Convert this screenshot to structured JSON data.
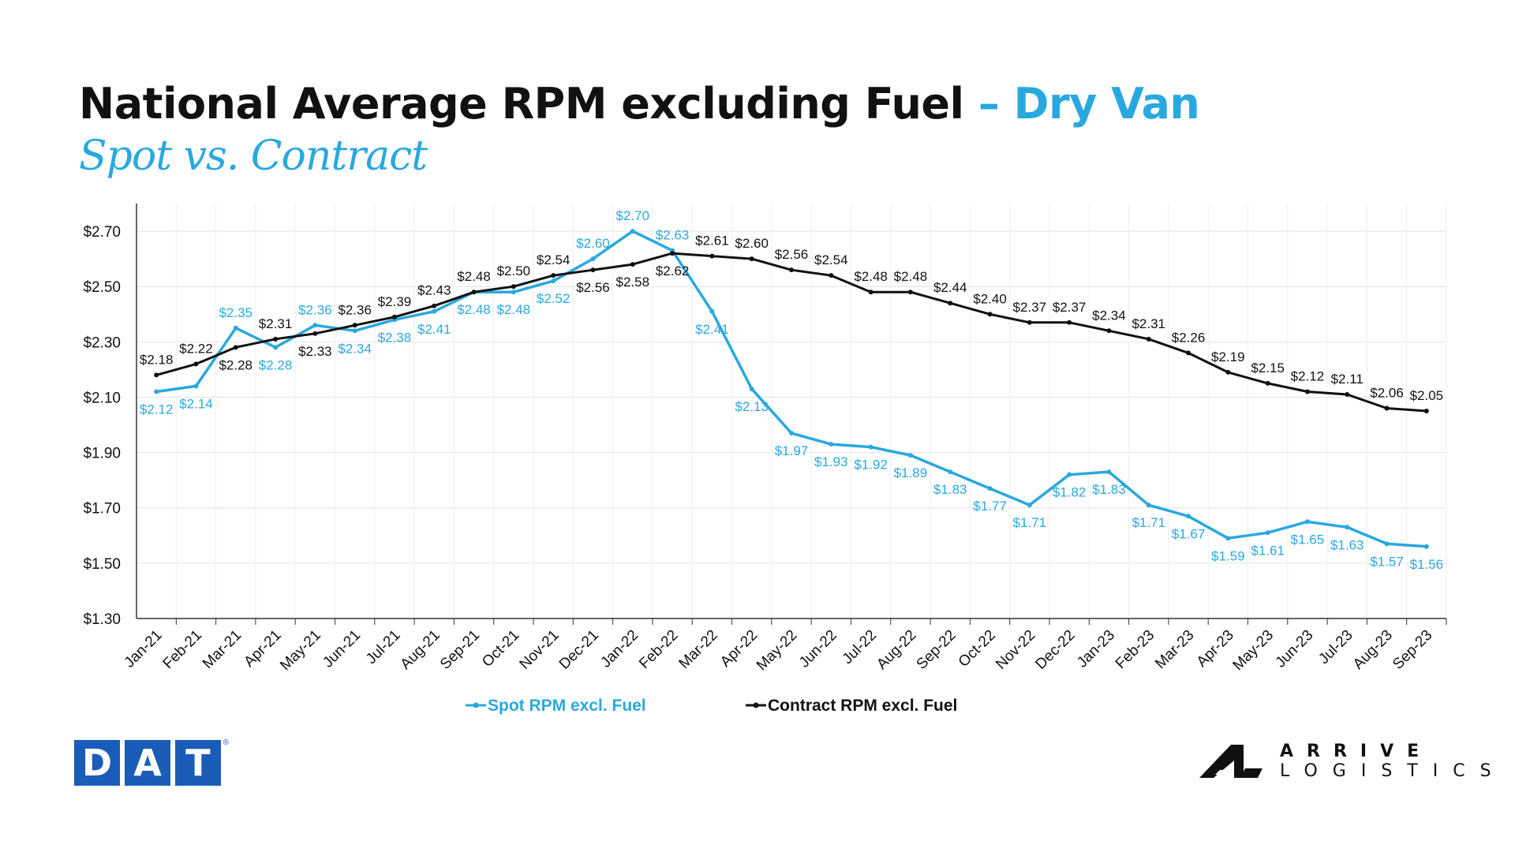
{
  "header": {
    "title_main": "National Average RPM excluding Fuel",
    "title_accent": "– Dry Van",
    "subtitle": "Spot vs. Contract"
  },
  "logos": {
    "dat_letters": [
      "D",
      "A",
      "T"
    ],
    "dat_mark": "®",
    "arrive_word1": "ARRIVE",
    "arrive_word2": "LOGISTICS"
  },
  "colors": {
    "spot": "#29a8e0",
    "contract": "#111111",
    "dat_blue": "#1a5db8"
  },
  "chart_data": {
    "type": "line",
    "title": "National Average RPM excluding Fuel – Dry Van",
    "subtitle": "Spot vs. Contract",
    "xlabel": "",
    "ylabel": "",
    "ylim": [
      1.3,
      2.8
    ],
    "yticks": [
      "$1.30",
      "$1.50",
      "$1.70",
      "$1.90",
      "$2.10",
      "$2.30",
      "$2.50",
      "$2.70"
    ],
    "ytick_values": [
      1.3,
      1.5,
      1.7,
      1.9,
      2.1,
      2.3,
      2.5,
      2.7
    ],
    "grid": true,
    "legend": "bottom-center",
    "categories": [
      "Jan-21",
      "Feb-21",
      "Mar-21",
      "Apr-21",
      "May-21",
      "Jun-21",
      "Jul-21",
      "Aug-21",
      "Sep-21",
      "Oct-21",
      "Nov-21",
      "Dec-21",
      "Jan-22",
      "Feb-22",
      "Mar-22",
      "Apr-22",
      "May-22",
      "Jun-22",
      "Jul-22",
      "Aug-22",
      "Sep-22",
      "Oct-22",
      "Nov-22",
      "Dec-22",
      "Jan-23",
      "Feb-23",
      "Mar-23",
      "Apr-23",
      "May-23",
      "Jun-23",
      "Jul-23",
      "Aug-23",
      "Sep-23"
    ],
    "series": [
      {
        "name": "Spot RPM excl. Fuel",
        "values": [
          2.12,
          2.14,
          2.35,
          2.28,
          2.36,
          2.34,
          2.38,
          2.41,
          2.48,
          2.48,
          2.52,
          2.6,
          2.7,
          2.63,
          2.41,
          2.13,
          1.97,
          1.93,
          1.92,
          1.89,
          1.83,
          1.77,
          1.71,
          1.82,
          1.83,
          1.71,
          1.67,
          1.59,
          1.61,
          1.65,
          1.63,
          1.57,
          1.56
        ],
        "labels": [
          "$2.12",
          "$2.14",
          "$2.35",
          "$2.28",
          "$2.36",
          "$2.34",
          "$2.38",
          "$2.41",
          "$2.48",
          "$2.48",
          "$2.52",
          "$2.60",
          "$2.70",
          "$2.63",
          "$2.41",
          "$2.13",
          "$1.97",
          "$1.93",
          "$1.92",
          "$1.89",
          "$1.83",
          "$1.77",
          "$1.71",
          "$1.82",
          "$1.83",
          "$1.71",
          "$1.67",
          "$1.59",
          "$1.61",
          "$1.65",
          "$1.63",
          "$1.57",
          "$1.56"
        ]
      },
      {
        "name": "Contract RPM excl. Fuel",
        "values": [
          2.18,
          2.22,
          2.28,
          2.31,
          2.33,
          2.36,
          2.39,
          2.43,
          2.48,
          2.5,
          2.54,
          2.56,
          2.58,
          2.62,
          2.61,
          2.6,
          2.56,
          2.54,
          2.48,
          2.48,
          2.44,
          2.4,
          2.37,
          2.37,
          2.34,
          2.31,
          2.26,
          2.19,
          2.15,
          2.12,
          2.11,
          2.06,
          2.05
        ],
        "labels": [
          "$2.18",
          "$2.22",
          "$2.28",
          "$2.31",
          "$2.33",
          "$2.36",
          "$2.39",
          "$2.43",
          "$2.48",
          "$2.50",
          "$2.54",
          "$2.56",
          "$2.58",
          "$2.62",
          "$2.61",
          "$2.60",
          "$2.56",
          "$2.54",
          "$2.48",
          "$2.48",
          "$2.44",
          "$2.40",
          "$2.37",
          "$2.37",
          "$2.34",
          "$2.31",
          "$2.26",
          "$2.19",
          "$2.15",
          "$2.12",
          "$2.11",
          "$2.06",
          "$2.05"
        ]
      }
    ]
  }
}
